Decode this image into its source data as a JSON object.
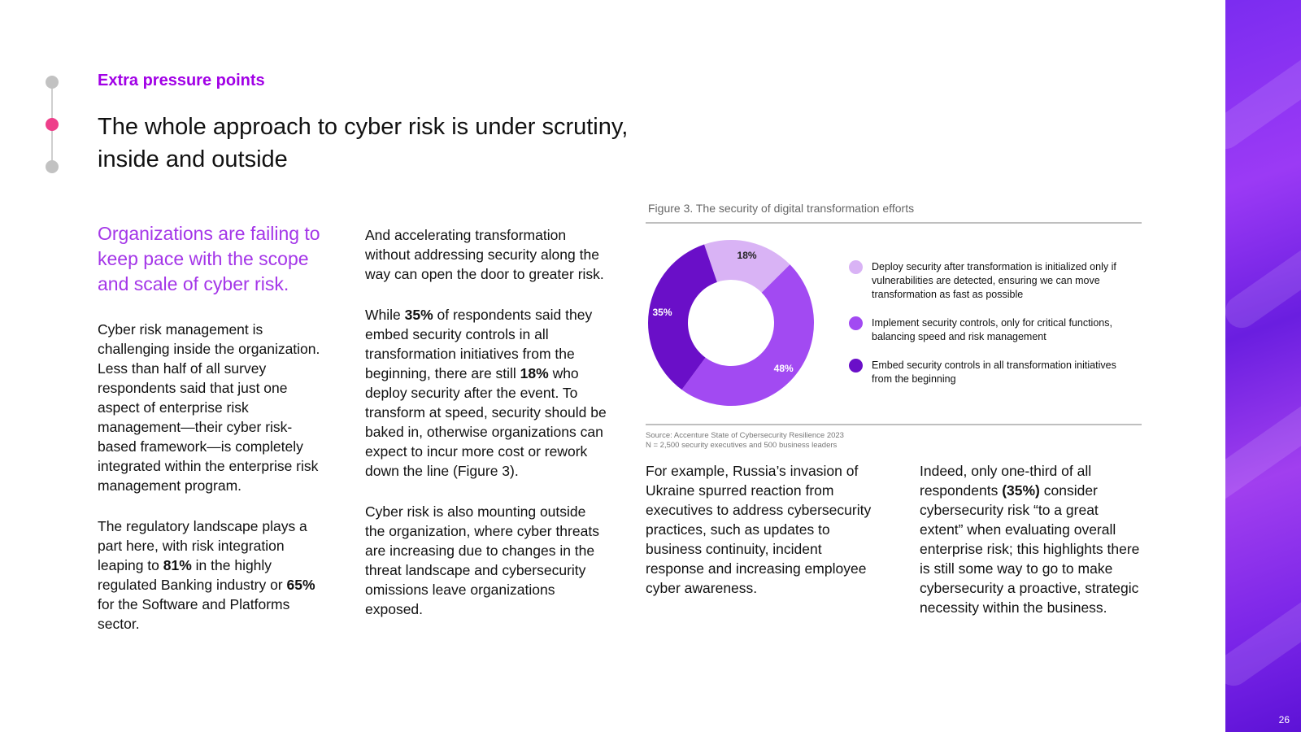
{
  "section_label": "Extra pressure points",
  "headline": "The whole approach to cyber risk is under scrutiny, inside and outside",
  "lead": "Organizations are failing to keep pace with the scope and scale of cyber risk.",
  "col1": {
    "p1": "Cyber risk management is challenging inside the organization. Less than half of all survey respondents said that just one aspect of enterprise risk management—their cyber risk-based framework—is completely integrated within the enterprise risk management program.",
    "p2_a": "The regulatory landscape plays a part here, with risk integration leaping to ",
    "p2_b": "81%",
    "p2_c": " in the highly regulated Banking industry or ",
    "p2_d": "65%",
    "p2_e": " for the Software and Platforms sector."
  },
  "col2": {
    "p1": "And accelerating transformation without addressing security along the way can open the door to greater risk.",
    "p2_a": "While ",
    "p2_b": "35%",
    "p2_c": " of respondents said they embed security controls in all transformation initiatives from the beginning, there are still ",
    "p2_d": "18%",
    "p2_e": " who deploy security after the event. To transform at speed, security should be baked in, otherwise organizations can expect to incur more cost or rework down the line (Figure 3).",
    "p3": "Cyber risk is also mounting outside the organization, where cyber threats are increasing due to changes in the threat landscape and cybersecurity omissions leave organizations exposed."
  },
  "col3": {
    "p1": "For example, Russia’s invasion of Ukraine spurred reaction from executives to address cybersecurity practices, such as updates to business continuity, incident response and increasing employee cyber awareness."
  },
  "col4": {
    "p1_a": "Indeed, only one-third of all respondents ",
    "p1_b": "(35%)",
    "p1_c": " consider cybersecurity risk “to a great extent” when evaluating overall enterprise risk; this highlights there is still some way to go to make cybersecurity a proactive, strategic necessity within the business."
  },
  "figure": {
    "caption": "Figure 3. The security of digital transformation efforts",
    "source_line1": "Source: Accenture State of Cybersecurity Resilience 2023",
    "source_line2": "N = 2,500 security executives and 500 business leaders"
  },
  "chart_data": {
    "type": "pie",
    "style": "donut",
    "title": "",
    "series": [
      {
        "name": "Deploy security after transformation is initialized only if vulnerabilities are detected, ensuring we can move transformation as fast as possible",
        "value": 18,
        "label": "18%",
        "color": "#d9b3f5",
        "label_color": "#222222"
      },
      {
        "name": "Implement security controls, only for critical functions, balancing speed and risk management",
        "value": 48,
        "label": "48%",
        "color": "#a24af2",
        "label_color": "#ffffff"
      },
      {
        "name": "Embed security controls in all transformation initiatives from the beginning",
        "value": 35,
        "label": "35%",
        "color": "#6a0fc8",
        "label_color": "#ffffff"
      }
    ],
    "legend_placement": "right"
  },
  "page_number": "26",
  "colors": {
    "accent": "#a100e6",
    "lead_text": "#a436e8",
    "active_dot": "#ee3f8a",
    "band": "#7b2cf0"
  }
}
